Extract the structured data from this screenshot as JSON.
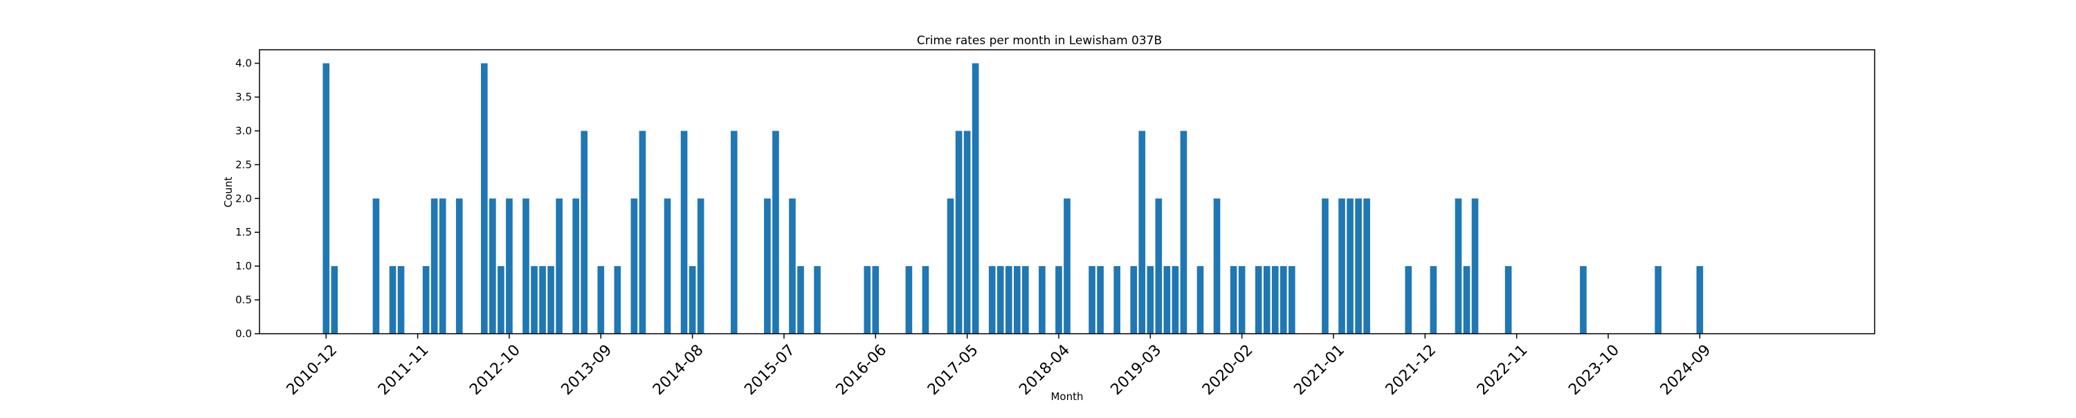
{
  "chart_data": {
    "type": "bar",
    "title": "Crime rates per month in Lewisham 037B",
    "xlabel": "Month",
    "ylabel": "Count",
    "ylim": [
      0,
      4.2
    ],
    "yticks": [
      "0.0",
      "0.5",
      "1.0",
      "1.5",
      "2.0",
      "2.5",
      "3.0",
      "3.5",
      "4.0"
    ],
    "xticks": [
      "2010-12",
      "2011-11",
      "2012-10",
      "2013-09",
      "2014-08",
      "2015-07",
      "2016-06",
      "2017-05",
      "2018-04",
      "2019-03",
      "2020-02",
      "2021-01",
      "2021-12",
      "2022-11",
      "2023-10",
      "2024-09"
    ],
    "xlim": [
      "2010-04",
      "2026-06"
    ],
    "grid": false,
    "color": "#1f77b4",
    "categories": [
      "2010-12",
      "2011-01",
      "2011-06",
      "2011-08",
      "2011-09",
      "2011-12",
      "2012-01",
      "2012-02",
      "2012-04",
      "2012-07",
      "2012-08",
      "2012-09",
      "2012-10",
      "2012-12",
      "2013-01",
      "2013-02",
      "2013-03",
      "2013-04",
      "2013-06",
      "2013-07",
      "2013-09",
      "2013-11",
      "2014-01",
      "2014-02",
      "2014-05",
      "2014-07",
      "2014-08",
      "2014-09",
      "2015-01",
      "2015-05",
      "2015-06",
      "2015-08",
      "2015-09",
      "2015-11",
      "2016-05",
      "2016-06",
      "2016-10",
      "2016-12",
      "2017-03",
      "2017-04",
      "2017-05",
      "2017-06",
      "2017-08",
      "2017-09",
      "2017-10",
      "2017-11",
      "2017-12",
      "2018-02",
      "2018-04",
      "2018-05",
      "2018-08",
      "2018-09",
      "2018-11",
      "2019-01",
      "2019-02",
      "2019-03",
      "2019-04",
      "2019-05",
      "2019-06",
      "2019-07",
      "2019-09",
      "2019-11",
      "2020-01",
      "2020-02",
      "2020-04",
      "2020-05",
      "2020-06",
      "2020-07",
      "2020-08",
      "2020-12",
      "2021-02",
      "2021-03",
      "2021-04",
      "2021-05",
      "2021-10",
      "2022-01",
      "2022-04",
      "2022-05",
      "2022-06",
      "2022-10",
      "2023-07",
      "2024-04",
      "2024-09"
    ],
    "values": [
      4,
      1,
      2,
      1,
      1,
      1,
      2,
      2,
      2,
      4,
      2,
      1,
      2,
      2,
      1,
      1,
      1,
      2,
      2,
      3,
      1,
      1,
      2,
      3,
      2,
      3,
      1,
      2,
      3,
      2,
      3,
      2,
      1,
      1,
      1,
      1,
      1,
      1,
      2,
      3,
      3,
      4,
      1,
      1,
      1,
      1,
      1,
      1,
      1,
      2,
      1,
      1,
      1,
      1,
      3,
      1,
      2,
      1,
      1,
      3,
      1,
      2,
      1,
      1,
      1,
      1,
      1,
      1,
      1,
      2,
      2,
      2,
      2,
      2,
      1,
      1,
      2,
      1,
      2,
      1,
      1,
      1,
      1
    ]
  }
}
